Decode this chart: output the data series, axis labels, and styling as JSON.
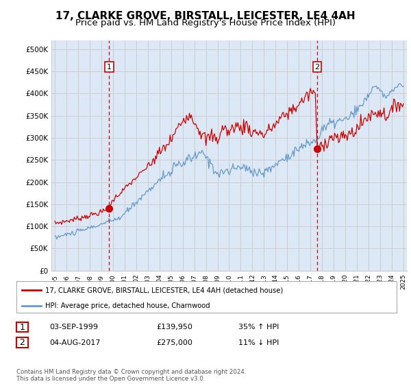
{
  "title": "17, CLARKE GROVE, BIRSTALL, LEICESTER, LE4 4AH",
  "subtitle": "Price paid vs. HM Land Registry's House Price Index (HPI)",
  "ylabel_ticks": [
    "£0",
    "£50K",
    "£100K",
    "£150K",
    "£200K",
    "£250K",
    "£300K",
    "£350K",
    "£400K",
    "£450K",
    "£500K"
  ],
  "ytick_values": [
    0,
    50000,
    100000,
    150000,
    200000,
    250000,
    300000,
    350000,
    400000,
    450000,
    500000
  ],
  "ylim": [
    0,
    520000
  ],
  "xlim_start": 1994.7,
  "xlim_end": 2025.3,
  "xtick_labels": [
    "1995",
    "1996",
    "1997",
    "1998",
    "1999",
    "2000",
    "2001",
    "2002",
    "2003",
    "2004",
    "2005",
    "2006",
    "2007",
    "2008",
    "2009",
    "2010",
    "2011",
    "2012",
    "2013",
    "2014",
    "2015",
    "2016",
    "2017",
    "2018",
    "2019",
    "2020",
    "2021",
    "2022",
    "2023",
    "2024",
    "2025"
  ],
  "red_line_color": "#cc0000",
  "blue_line_color": "#6699cc",
  "dashed_line_color": "#cc0000",
  "plot_bg_color": "#dce8f5",
  "marker1_x": 1999.67,
  "marker1_y": 139950,
  "marker2_x": 2017.58,
  "marker2_y": 275000,
  "marker2_peak_y": 410000,
  "legend_red_label": "17, CLARKE GROVE, BIRSTALL, LEICESTER, LE4 4AH (detached house)",
  "legend_blue_label": "HPI: Average price, detached house, Charnwood",
  "table_row1": [
    "1",
    "03-SEP-1999",
    "£139,950",
    "35% ↑ HPI"
  ],
  "table_row2": [
    "2",
    "04-AUG-2017",
    "£275,000",
    "11% ↓ HPI"
  ],
  "footnote": "Contains HM Land Registry data © Crown copyright and database right 2024.\nThis data is licensed under the Open Government Licence v3.0.",
  "background_color": "#ffffff",
  "grid_color": "#cccccc",
  "title_fontsize": 11,
  "subtitle_fontsize": 9.5
}
